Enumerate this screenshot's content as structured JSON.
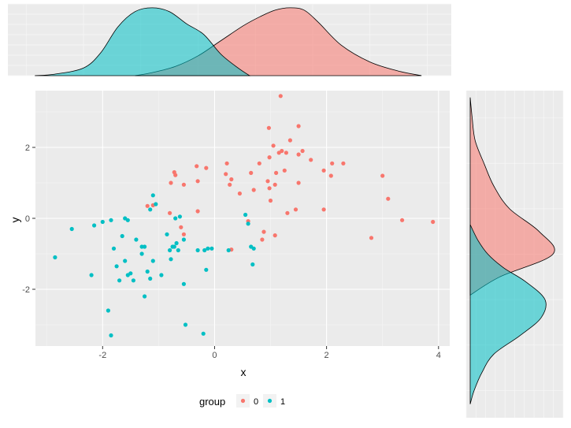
{
  "chart_data": {
    "type": "scatter",
    "xlabel": "x",
    "ylabel": "y",
    "xlim": [
      -3.2,
      4.2
    ],
    "ylim": [
      -3.6,
      3.6
    ],
    "x_ticks": [
      -2,
      0,
      2,
      4
    ],
    "y_ticks": [
      -2,
      0,
      2
    ],
    "grid": true,
    "legend": {
      "title": "group",
      "placement": "bottom",
      "entries": [
        {
          "label": "0",
          "color": "#F8766D"
        },
        {
          "label": "1",
          "color": "#00BFC4"
        }
      ]
    },
    "series": [
      {
        "name": "0",
        "color": "#F8766D",
        "points": [
          [
            -1.1,
            0.37
          ],
          [
            -1.2,
            0.35
          ],
          [
            -0.8,
            0.15
          ],
          [
            -0.78,
            1.0
          ],
          [
            -0.72,
            1.3
          ],
          [
            -0.7,
            1.22
          ],
          [
            -0.55,
            0.95
          ],
          [
            -0.6,
            -0.25
          ],
          [
            -0.55,
            -0.45
          ],
          [
            -0.32,
            1.47
          ],
          [
            -0.3,
            1.05
          ],
          [
            -0.3,
            0.2
          ],
          [
            -0.15,
            1.42
          ],
          [
            0.2,
            1.25
          ],
          [
            0.22,
            1.55
          ],
          [
            0.3,
            1.1
          ],
          [
            0.27,
            0.95
          ],
          [
            0.3,
            -0.88
          ],
          [
            0.45,
            0.7
          ],
          [
            0.6,
            -0.08
          ],
          [
            0.65,
            1.28
          ],
          [
            0.7,
            0.8
          ],
          [
            0.8,
            1.55
          ],
          [
            0.85,
            -0.6
          ],
          [
            0.88,
            -0.38
          ],
          [
            0.95,
            1.05
          ],
          [
            0.98,
            0.85
          ],
          [
            1.0,
            0.5
          ],
          [
            0.97,
            2.55
          ],
          [
            1.05,
            2.05
          ],
          [
            1.1,
            1.28
          ],
          [
            1.08,
            -0.48
          ],
          [
            1.15,
            1.85
          ],
          [
            1.18,
            3.45
          ],
          [
            1.2,
            1.9
          ],
          [
            1.25,
            1.35
          ],
          [
            1.28,
            1.85
          ],
          [
            1.3,
            0.15
          ],
          [
            1.35,
            2.2
          ],
          [
            1.45,
            0.25
          ],
          [
            1.5,
            2.6
          ],
          [
            1.5,
            1.8
          ],
          [
            1.5,
            1.0
          ],
          [
            1.57,
            1.9
          ],
          [
            1.72,
            1.65
          ],
          [
            1.95,
            1.35
          ],
          [
            1.95,
            0.25
          ],
          [
            2.08,
            1.2
          ],
          [
            2.1,
            1.55
          ],
          [
            2.3,
            1.55
          ],
          [
            2.8,
            -0.55
          ],
          [
            3.0,
            1.2
          ],
          [
            3.1,
            0.55
          ],
          [
            3.35,
            -0.05
          ],
          [
            3.9,
            -0.1
          ],
          [
            0.98,
            1.72
          ],
          [
            1.08,
            0.95
          ]
        ]
      },
      {
        "name": "1",
        "color": "#00BFC4",
        "points": [
          [
            -2.85,
            -1.1
          ],
          [
            -2.55,
            -0.3
          ],
          [
            -2.2,
            -1.6
          ],
          [
            -2.15,
            -0.2
          ],
          [
            -2.0,
            -0.1
          ],
          [
            -1.9,
            -2.6
          ],
          [
            -1.85,
            -3.3
          ],
          [
            -1.85,
            -0.05
          ],
          [
            -1.8,
            -0.85
          ],
          [
            -1.75,
            -1.35
          ],
          [
            -1.7,
            -1.75
          ],
          [
            -1.65,
            -0.5
          ],
          [
            -1.6,
            -1.2
          ],
          [
            -1.6,
            0.0
          ],
          [
            -1.55,
            -0.05
          ],
          [
            -1.55,
            -1.6
          ],
          [
            -1.5,
            -1.55
          ],
          [
            -1.45,
            -1.75
          ],
          [
            -1.4,
            -0.6
          ],
          [
            -1.3,
            -0.8
          ],
          [
            -1.3,
            -1.0
          ],
          [
            -1.25,
            -0.8
          ],
          [
            -1.25,
            -2.2
          ],
          [
            -1.2,
            -1.5
          ],
          [
            -1.15,
            -1.7
          ],
          [
            -1.15,
            0.25
          ],
          [
            -1.1,
            0.65
          ],
          [
            -1.05,
            0.4
          ],
          [
            -1.1,
            -1.2
          ],
          [
            -0.95,
            -1.6
          ],
          [
            -0.85,
            -0.45
          ],
          [
            -0.8,
            -0.9
          ],
          [
            -0.78,
            -1.15
          ],
          [
            -0.75,
            -0.8
          ],
          [
            -0.7,
            0.0
          ],
          [
            -0.68,
            -0.7
          ],
          [
            -0.65,
            -0.9
          ],
          [
            -0.62,
            0.05
          ],
          [
            -0.55,
            -0.6
          ],
          [
            -0.55,
            -1.85
          ],
          [
            -0.52,
            -3.0
          ],
          [
            -0.3,
            -0.9
          ],
          [
            -0.2,
            -3.25
          ],
          [
            -0.18,
            -0.9
          ],
          [
            -0.15,
            -1.45
          ],
          [
            -0.12,
            -0.85
          ],
          [
            -0.05,
            -0.85
          ],
          [
            0.25,
            -0.9
          ],
          [
            0.55,
            0.1
          ],
          [
            0.6,
            -0.15
          ],
          [
            0.65,
            -0.8
          ],
          [
            0.7,
            -0.85
          ],
          [
            0.68,
            -1.3
          ],
          [
            -0.72,
            -0.8
          ]
        ]
      }
    ],
    "marginal_x_density": {
      "type": "area",
      "xlim": [
        -3.32,
        4.42
      ],
      "series": [
        {
          "name": "0",
          "color": "#F8766D",
          "x": [
            -1.1,
            -0.8,
            -0.4,
            0.0,
            0.4,
            0.8,
            1.1,
            1.35,
            1.6,
            1.85,
            2.1,
            2.5,
            3.0,
            3.5,
            3.9
          ],
          "density": [
            0.0,
            0.02,
            0.06,
            0.13,
            0.23,
            0.33,
            0.39,
            0.43,
            0.445,
            0.43,
            0.35,
            0.2,
            0.09,
            0.03,
            0.0
          ]
        },
        {
          "name": "1",
          "color": "#00BFC4",
          "x": [
            -2.85,
            -2.5,
            -2.0,
            -1.7,
            -1.4,
            -1.1,
            -0.8,
            -0.5,
            -0.2,
            0.1,
            0.4,
            0.7,
            0.9
          ],
          "density": [
            0.0,
            0.01,
            0.05,
            0.15,
            0.32,
            0.42,
            0.445,
            0.42,
            0.34,
            0.27,
            0.14,
            0.05,
            0.0
          ]
        }
      ]
    },
    "marginal_y_density": {
      "type": "area",
      "ylim": [
        -3.6,
        3.6
      ],
      "series": [
        {
          "name": "0",
          "color": "#F8766D",
          "y": [
            -0.9,
            -0.5,
            0.0,
            0.5,
            1.0,
            1.5,
            2.0,
            2.5,
            3.0,
            3.45
          ],
          "density": [
            0.0,
            0.15,
            0.42,
            0.35,
            0.2,
            0.12,
            0.07,
            0.025,
            0.01,
            0.0
          ]
        },
        {
          "name": "1",
          "color": "#00BFC4",
          "y": [
            -3.3,
            -3.0,
            -2.6,
            -2.2,
            -1.8,
            -1.4,
            -1.0,
            -0.6,
            -0.3,
            0.0,
            0.3,
            0.65
          ],
          "density": [
            0.0,
            0.02,
            0.06,
            0.12,
            0.25,
            0.36,
            0.38,
            0.28,
            0.17,
            0.09,
            0.04,
            0.0
          ]
        }
      ]
    }
  }
}
